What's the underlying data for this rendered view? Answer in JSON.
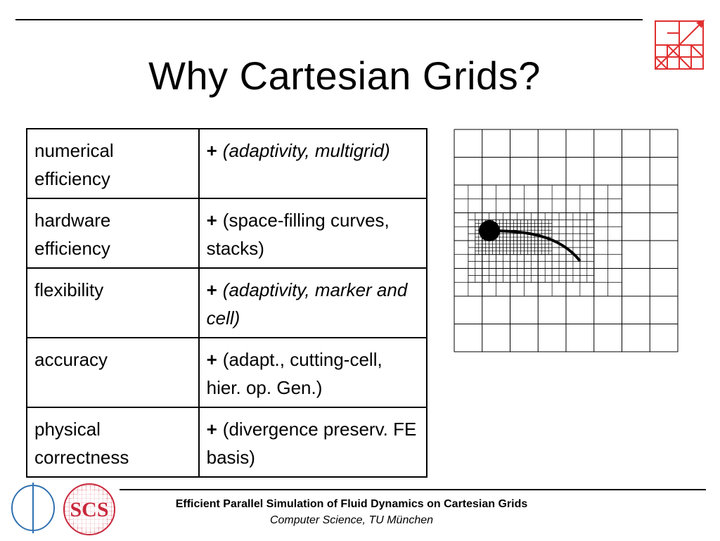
{
  "slide": {
    "title": "Why Cartesian Grids?",
    "rows": [
      {
        "criterion": "numerical efficiency",
        "mark": "+",
        "detail": "(adaptivity, multigrid)",
        "detail_italic": true
      },
      {
        "criterion": "hardware efficiency",
        "mark": "+",
        "detail": "(space-filling curves, stacks)",
        "detail_italic": false
      },
      {
        "criterion": "flexibility",
        "mark": "+",
        "detail": "(adaptivity, marker and cell)",
        "detail_italic": true
      },
      {
        "criterion": "accuracy",
        "mark": "+",
        "detail": "(adapt., cutting-cell, hier. op. Gen.)",
        "detail_italic": false
      },
      {
        "criterion": "physical correctness",
        "mark": "+",
        "detail": "(divergence preserv. FE basis)",
        "detail_italic": false
      }
    ]
  },
  "footer": {
    "title": "Efficient Parallel Simulation of Fluid Dynamics on Cartesian Grids",
    "subtitle": "Computer Science, TU München"
  },
  "logos": {
    "scs_text": "SCS"
  },
  "colors": {
    "logo_red": "#e03030",
    "scs_red": "#c8283c",
    "tum_blue": "#3070b0",
    "grid_line": "#000000"
  },
  "icons": {
    "top_right_logo": "grid-arrow-logo-icon",
    "tum_logo": "tum-logo-icon",
    "scs_logo": "scs-logo-icon"
  }
}
